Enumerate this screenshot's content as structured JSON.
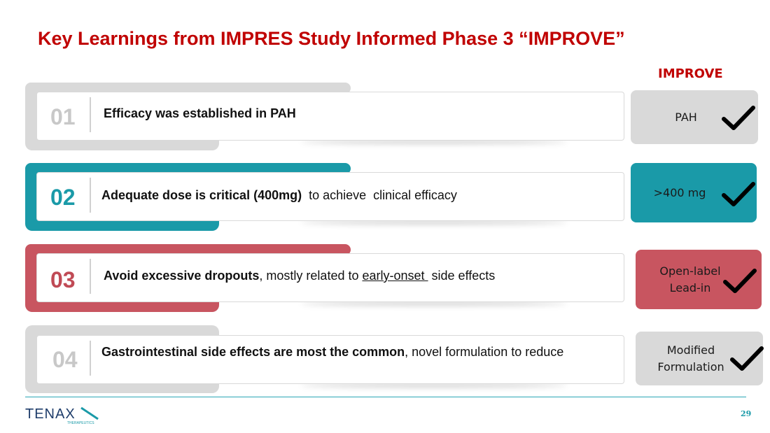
{
  "title": "Key Learnings from IMPRES Study Informed Phase 3 “IMPROVE”",
  "improve_header": "IMPROVE",
  "rows": [
    {
      "num": "01",
      "bold": "Efficacy was established in PAH",
      "pre": "",
      "ul": "",
      "post": "",
      "improve": "PAH",
      "accent": "#d9d9d9",
      "num_color": "#c8c8c8",
      "box_color": "#d9d9d9"
    },
    {
      "num": "02",
      "bold": "Adequate dose is critical (400mg)",
      "pre": "  to achieve  clinical efficacy",
      "ul": "",
      "post": "",
      "improve": ">400 mg",
      "accent": "#1a9aa8",
      "num_color": "#1a9aa8",
      "box_color": "#1a9aa8"
    },
    {
      "num": "03",
      "bold": "Avoid excessive dropouts",
      "pre": ", mostly related to ",
      "ul": "early-onset ",
      "post": " side effects",
      "improve": "Open-label\nLead-in",
      "accent": "#c85560",
      "num_color": "#c04a55",
      "box_color": "#c85560"
    },
    {
      "num": "04",
      "bold": "Gastrointestinal side effects are most the common",
      "pre": ", novel formulation to reduce",
      "ul": "",
      "post": "",
      "improve": "Modified\nFormulation",
      "accent": "#d9d9d9",
      "num_color": "#c8c8c8",
      "box_color": "#d9d9d9"
    }
  ],
  "logo": {
    "wordmark": "TENAX",
    "tagline": "THERAPEUTICS"
  },
  "page_number": "29"
}
